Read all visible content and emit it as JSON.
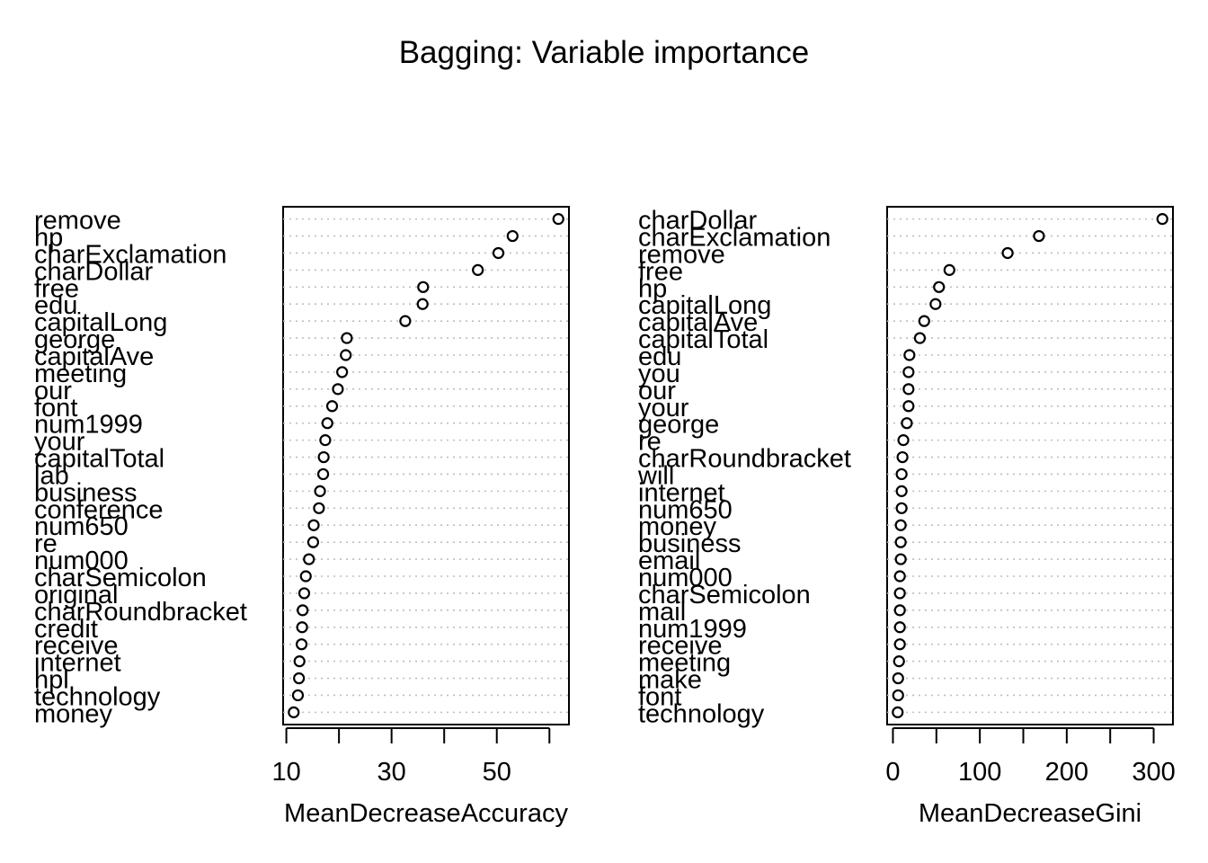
{
  "title": "Bagging: Variable importance",
  "colors": {
    "point_stroke": "#000000",
    "guide_line": "#bebebe",
    "background": "#ffffff"
  },
  "chart_data": [
    {
      "type": "scatter",
      "subtype": "dotchart",
      "xlabel": "MeanDecreaseAccuracy",
      "ylabel": "",
      "xlim": [
        11.4,
        61.7
      ],
      "xticks": [
        10,
        20,
        30,
        40,
        50,
        60
      ],
      "xtick_labels": [
        "10",
        "30",
        "50"
      ],
      "grid": true,
      "categories": [
        "remove",
        "hp",
        "charExclamation",
        "charDollar",
        "free",
        "edu",
        "capitalLong",
        "george",
        "capitalAve",
        "meeting",
        "our",
        "font",
        "num1999",
        "your",
        "capitalTotal",
        "lab",
        "business",
        "conference",
        "num650",
        "re",
        "num000",
        "charSemicolon",
        "original",
        "charRoundbracket",
        "credit",
        "receive",
        "internet",
        "hpl",
        "technology",
        "money"
      ],
      "values": [
        61.7,
        53.0,
        50.3,
        46.4,
        36.0,
        35.9,
        32.6,
        21.5,
        21.3,
        20.6,
        19.8,
        18.7,
        17.8,
        17.4,
        17.1,
        17.0,
        16.4,
        16.2,
        15.2,
        15.1,
        14.3,
        13.7,
        13.4,
        13.1,
        13.0,
        12.9,
        12.5,
        12.4,
        12.2,
        11.4
      ]
    },
    {
      "type": "scatter",
      "subtype": "dotchart",
      "xlabel": "MeanDecreaseGini",
      "ylabel": "",
      "xlim": [
        5.5,
        310
      ],
      "xticks": [
        0,
        50,
        100,
        150,
        200,
        250,
        300
      ],
      "xtick_labels": [
        "0",
        "100",
        "200",
        "300"
      ],
      "grid": true,
      "categories": [
        "charDollar",
        "charExclamation",
        "remove",
        "free",
        "hp",
        "capitalLong",
        "capitalAve",
        "capitalTotal",
        "edu",
        "you",
        "our",
        "your",
        "george",
        "re",
        "charRoundbracket",
        "will",
        "internet",
        "num650",
        "money",
        "business",
        "email",
        "num000",
        "charSemicolon",
        "mail",
        "num1999",
        "receive",
        "meeting",
        "make",
        "font",
        "technology"
      ],
      "values": [
        310,
        168,
        132,
        65,
        53,
        49,
        36,
        31,
        19,
        18,
        18,
        18,
        16,
        12,
        11,
        10,
        10,
        10,
        9,
        9,
        9,
        8,
        8,
        8,
        8,
        8,
        7,
        6,
        6,
        5.5
      ]
    }
  ]
}
